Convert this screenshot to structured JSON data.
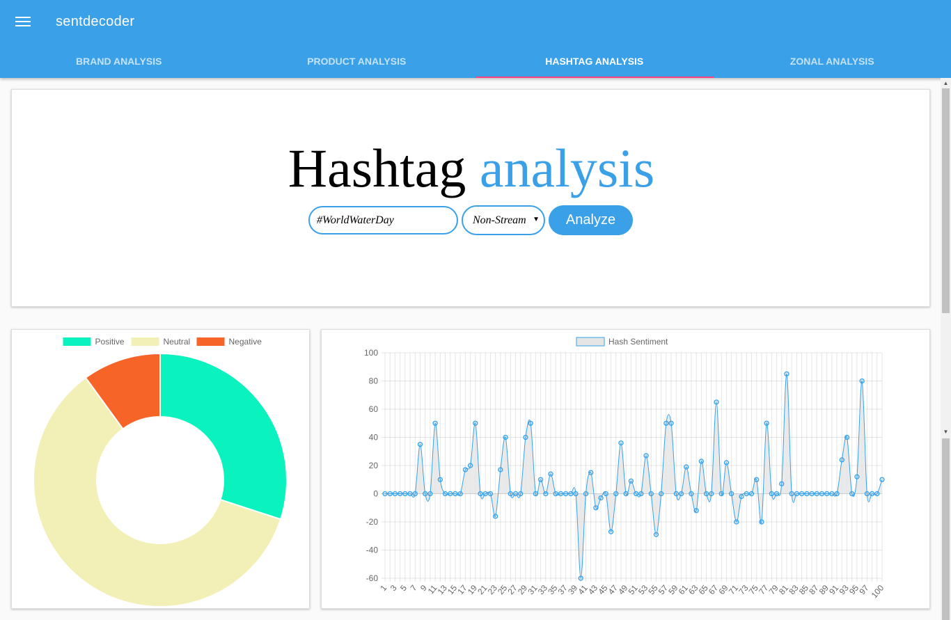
{
  "app": {
    "title": "sentdecoder",
    "menu_icon": "hamburger-menu-icon"
  },
  "tabs": [
    {
      "label": "BRAND ANALYSIS",
      "active": false
    },
    {
      "label": "PRODUCT ANALYSIS",
      "active": false
    },
    {
      "label": "HASHTAG ANALYSIS",
      "active": true
    },
    {
      "label": "ZONAL ANALYSIS",
      "active": false
    }
  ],
  "hero": {
    "title_part1": "Hashtag",
    "title_part2": "analysis",
    "hashtag_value": "#WorldWaterDay",
    "mode_value": "Non-Stream",
    "analyze_label": "Analyze"
  },
  "colors": {
    "primary": "#3aa0e8",
    "tab_indicator": "#ff4081",
    "positive": "#0af2be",
    "neutral": "#f3f0b7",
    "negative": "#f76428"
  },
  "chart_data": [
    {
      "type": "pie",
      "variant": "doughnut",
      "labels": [
        "Positive",
        "Neutral",
        "Negative"
      ],
      "values": [
        30,
        60,
        10
      ],
      "colors": [
        "#0af2be",
        "#f3f0b7",
        "#f76428"
      ],
      "legend": "top"
    },
    {
      "type": "line",
      "series": [
        {
          "name": "Hash Sentiment",
          "values": [
            0,
            0,
            0,
            0,
            0,
            0,
            0,
            35,
            0,
            0,
            50,
            10,
            0,
            0,
            0,
            0,
            17,
            20,
            50,
            0,
            0,
            0,
            -16,
            17,
            40,
            0,
            0,
            0,
            40,
            50,
            0,
            10,
            0,
            14,
            0,
            0,
            0,
            0,
            0,
            -60,
            0,
            15,
            -10,
            -3,
            0,
            -27,
            0,
            36,
            0,
            9,
            0,
            0,
            27,
            0,
            -29,
            0,
            50,
            50,
            0,
            0,
            19,
            0,
            -12,
            23,
            0,
            0,
            65,
            0,
            22,
            0,
            -20,
            -2,
            0,
            0,
            10,
            -20,
            50,
            0,
            0,
            7,
            85,
            0,
            0,
            0,
            0,
            0,
            0,
            0,
            0,
            0,
            0,
            24,
            40,
            0,
            12,
            80,
            0,
            0,
            0,
            10
          ]
        }
      ],
      "x": {
        "start": 1,
        "end": 100,
        "tick_labels": [
          "1",
          "3",
          "5",
          "7",
          "9",
          "11",
          "13",
          "15",
          "17",
          "19",
          "21",
          "23",
          "25",
          "27",
          "29",
          "31",
          "33",
          "35",
          "37",
          "39",
          "41",
          "43",
          "45",
          "47",
          "49",
          "51",
          "53",
          "55",
          "57",
          "59",
          "61",
          "63",
          "65",
          "67",
          "69",
          "71",
          "73",
          "75",
          "77",
          "79",
          "81",
          "83",
          "85",
          "87",
          "89",
          "91",
          "93",
          "95",
          "97",
          "100"
        ]
      },
      "y": {
        "ylim": [
          -60,
          100
        ],
        "tick_labels": [
          "100",
          "80",
          "60",
          "40",
          "20",
          "0",
          "-20",
          "-40",
          "-60"
        ]
      },
      "grid": true,
      "legend": "top",
      "line_color": "#36a2eb",
      "fill_color": "#e5e5e5"
    }
  ]
}
